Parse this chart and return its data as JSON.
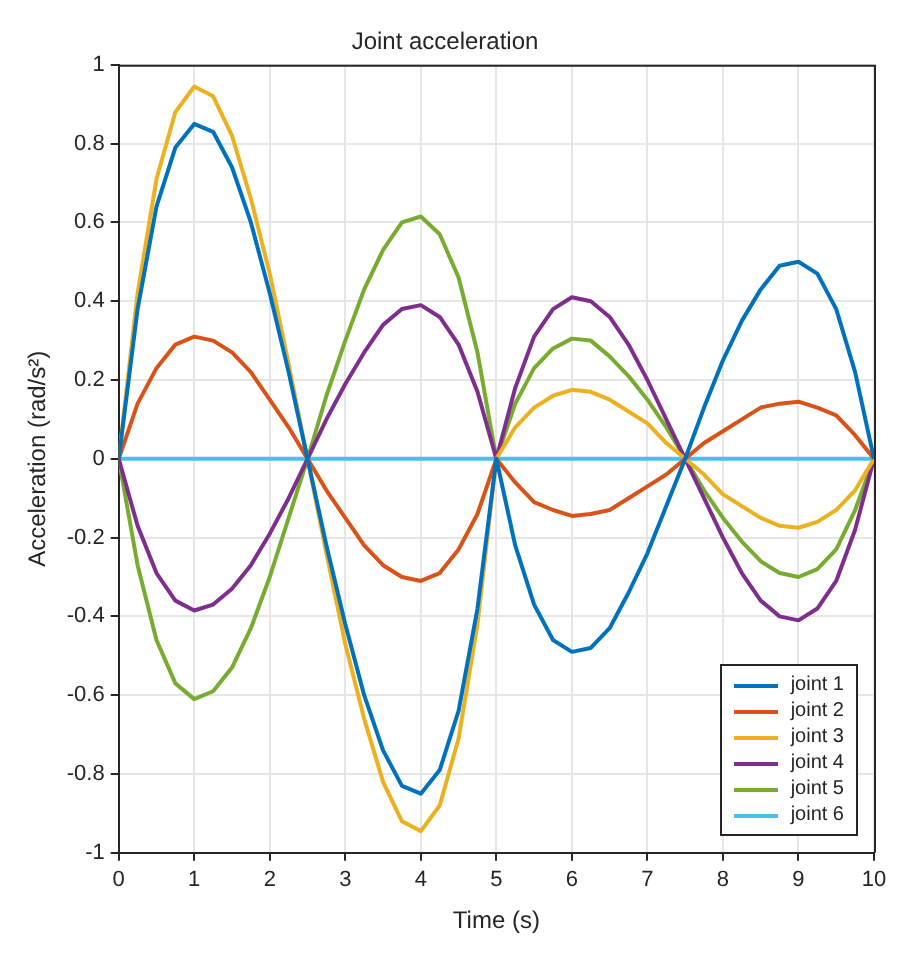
{
  "chart_data": {
    "type": "line",
    "title": "Joint acceleration",
    "xlabel": "Time (s)",
    "ylabel": "Acceleration (rad/s²)",
    "x": [
      0,
      0.25,
      0.5,
      0.75,
      1,
      1.25,
      1.5,
      1.75,
      2,
      2.25,
      2.5,
      2.75,
      3,
      3.25,
      3.5,
      3.75,
      4,
      4.25,
      4.5,
      4.75,
      5,
      5.25,
      5.5,
      5.75,
      6,
      6.25,
      6.5,
      6.75,
      7,
      7.25,
      7.5,
      7.75,
      8,
      8.25,
      8.5,
      8.75,
      9,
      9.25,
      9.5,
      9.75,
      10
    ],
    "series": [
      {
        "name": "joint 1",
        "color": "#0072bd",
        "values": [
          0,
          0.38,
          0.64,
          0.79,
          0.85,
          0.83,
          0.74,
          0.6,
          0.42,
          0.22,
          0,
          -0.22,
          -0.42,
          -0.6,
          -0.74,
          -0.83,
          -0.85,
          -0.79,
          -0.64,
          -0.38,
          0,
          -0.22,
          -0.37,
          -0.46,
          -0.49,
          -0.48,
          -0.43,
          -0.34,
          -0.24,
          -0.12,
          0,
          0.13,
          0.25,
          0.35,
          0.43,
          0.49,
          0.5,
          0.47,
          0.38,
          0.22,
          0
        ]
      },
      {
        "name": "joint 2",
        "color": "#d95319",
        "values": [
          0,
          0.14,
          0.23,
          0.29,
          0.31,
          0.3,
          0.27,
          0.22,
          0.15,
          0.08,
          0,
          -0.08,
          -0.15,
          -0.22,
          -0.27,
          -0.3,
          -0.31,
          -0.29,
          -0.23,
          -0.14,
          0,
          -0.06,
          -0.11,
          -0.13,
          -0.145,
          -0.14,
          -0.13,
          -0.1,
          -0.07,
          -0.04,
          0,
          0.04,
          0.07,
          0.1,
          0.13,
          0.14,
          0.145,
          0.13,
          0.11,
          0.06,
          0
        ]
      },
      {
        "name": "joint 3",
        "color": "#edb120",
        "values": [
          0,
          0.42,
          0.71,
          0.88,
          0.945,
          0.92,
          0.82,
          0.66,
          0.47,
          0.24,
          0,
          -0.24,
          -0.47,
          -0.66,
          -0.82,
          -0.92,
          -0.945,
          -0.88,
          -0.71,
          -0.42,
          0,
          0.08,
          0.13,
          0.16,
          0.175,
          0.17,
          0.15,
          0.12,
          0.09,
          0.04,
          0,
          -0.04,
          -0.09,
          -0.12,
          -0.15,
          -0.17,
          -0.175,
          -0.16,
          -0.13,
          -0.08,
          0
        ]
      },
      {
        "name": "joint 4",
        "color": "#7e2f8e",
        "values": [
          0,
          -0.17,
          -0.29,
          -0.36,
          -0.385,
          -0.37,
          -0.33,
          -0.27,
          -0.19,
          -0.1,
          0,
          0.1,
          0.19,
          0.27,
          0.34,
          0.38,
          0.39,
          0.36,
          0.29,
          0.17,
          0,
          0.18,
          0.31,
          0.38,
          0.41,
          0.4,
          0.36,
          0.29,
          0.2,
          0.1,
          0,
          -0.1,
          -0.2,
          -0.29,
          -0.36,
          -0.4,
          -0.41,
          -0.38,
          -0.31,
          -0.18,
          0
        ]
      },
      {
        "name": "joint 5",
        "color": "#77ac30",
        "values": [
          0,
          -0.27,
          -0.46,
          -0.57,
          -0.61,
          -0.59,
          -0.53,
          -0.43,
          -0.3,
          -0.15,
          0,
          0.16,
          0.3,
          0.43,
          0.53,
          0.6,
          0.615,
          0.57,
          0.46,
          0.27,
          0,
          0.14,
          0.23,
          0.28,
          0.305,
          0.3,
          0.26,
          0.21,
          0.15,
          0.08,
          0,
          -0.08,
          -0.15,
          -0.21,
          -0.26,
          -0.29,
          -0.3,
          -0.28,
          -0.23,
          -0.13,
          0
        ]
      },
      {
        "name": "joint 6",
        "color": "#4dbeee",
        "values": [
          0,
          0,
          0,
          0,
          0,
          0,
          0,
          0,
          0,
          0,
          0,
          0,
          0,
          0,
          0,
          0,
          0,
          0,
          0,
          0,
          0,
          0,
          0,
          0,
          0,
          0,
          0,
          0,
          0,
          0,
          0,
          0,
          0,
          0,
          0,
          0,
          0,
          0,
          0,
          0,
          0
        ]
      }
    ],
    "xlim": [
      0,
      10
    ],
    "xticks": [
      0,
      1,
      2,
      3,
      4,
      5,
      6,
      7,
      8,
      9,
      10
    ],
    "ylim": [
      -1,
      1
    ],
    "yticks": [
      -1,
      -0.8,
      -0.6,
      -0.4,
      -0.2,
      0,
      0.2,
      0.4,
      0.6,
      0.8,
      1
    ],
    "grid": true,
    "legend": "bottom right",
    "marker": "none",
    "line_style": "solid"
  }
}
